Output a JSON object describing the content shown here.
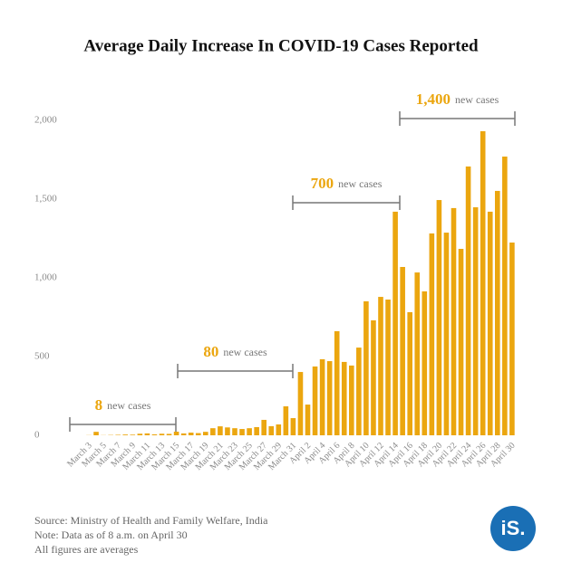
{
  "chart_data": {
    "type": "bar",
    "title": "Average Daily Increase In COVID-19 Cases Reported",
    "categories": [
      "March 3",
      null,
      "March 5",
      null,
      "March 7",
      null,
      "March 9",
      null,
      "March 11",
      null,
      "March 13",
      null,
      "March 15",
      null,
      "March 17",
      null,
      "March 19",
      null,
      "March 21",
      null,
      "March 23",
      null,
      "March 25",
      null,
      "March 27",
      null,
      "March 29",
      null,
      "March 31",
      null,
      "April 2",
      null,
      "April 4",
      null,
      "April 6",
      null,
      "April 8",
      null,
      "April 10",
      null,
      "April 12",
      null,
      "April 14",
      null,
      "April 16",
      null,
      "April 18",
      null,
      "April 20",
      null,
      "April 22",
      null,
      "April 24",
      null,
      "April 26",
      null,
      "April 28",
      null,
      "April 30"
    ],
    "values": [
      1,
      22,
      1,
      2,
      3,
      5,
      4,
      10,
      12,
      6,
      10,
      9,
      23,
      12,
      17,
      14,
      22,
      45,
      57,
      50,
      45,
      40,
      45,
      52,
      98,
      58,
      69,
      184,
      109,
      402,
      195,
      437,
      483,
      471,
      661,
      466,
      443,
      557,
      851,
      730,
      879,
      862,
      1420,
      1069,
      782,
      1034,
      914,
      1282,
      1494,
      1287,
      1443,
      1184,
      1707,
      1448,
      1931,
      1420,
      1552,
      1770,
      1224
    ],
    "color": "#eba60f",
    "ylim": [
      0,
      2000
    ],
    "yticks": [
      0,
      500,
      {
        "value": 1000,
        "label": "1,000"
      },
      {
        "value": 1500,
        "label": "1,500"
      },
      {
        "value": 2000,
        "label": "2,000"
      }
    ],
    "grid": false,
    "annotations": [
      {
        "number": "8",
        "text": "new cases"
      },
      {
        "number": "80",
        "text": "new cases"
      },
      {
        "number": "700",
        "text": "new cases"
      },
      {
        "number": "1,400",
        "text": "new cases"
      }
    ]
  },
  "footer": {
    "lines": [
      "Source: Ministry of Health and Family Welfare, India",
      "Note: Data as of 8 a.m. on April 30",
      "All figures are averages"
    ],
    "logo": "iS."
  }
}
